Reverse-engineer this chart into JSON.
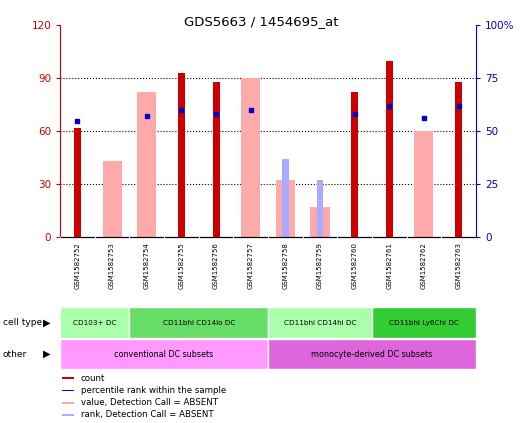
{
  "title": "GDS5663 / 1454695_at",
  "samples": [
    "GSM1582752",
    "GSM1582753",
    "GSM1582754",
    "GSM1582755",
    "GSM1582756",
    "GSM1582757",
    "GSM1582758",
    "GSM1582759",
    "GSM1582760",
    "GSM1582761",
    "GSM1582762",
    "GSM1582763"
  ],
  "count_values": [
    62,
    null,
    null,
    93,
    88,
    null,
    null,
    null,
    82,
    100,
    null,
    88
  ],
  "percentile_values": [
    55,
    null,
    57,
    60,
    58,
    60,
    null,
    null,
    58,
    62,
    56,
    62
  ],
  "absent_value_values": [
    null,
    43,
    82,
    null,
    null,
    90,
    32,
    17,
    null,
    null,
    60,
    null
  ],
  "absent_rank_values": [
    null,
    null,
    null,
    null,
    null,
    null,
    37,
    27,
    null,
    null,
    null,
    null
  ],
  "left_ylim": [
    0,
    120
  ],
  "right_ylim": [
    0,
    100
  ],
  "left_yticks": [
    0,
    30,
    60,
    90,
    120
  ],
  "right_yticks": [
    0,
    25,
    50,
    75,
    100
  ],
  "left_yticklabels": [
    "0",
    "30",
    "60",
    "90",
    "120"
  ],
  "right_yticklabels": [
    "0",
    "25",
    "50",
    "75",
    "100%"
  ],
  "left_tick_color": "#cc0000",
  "right_tick_color": "#0000cc",
  "count_color": "#cc0000",
  "percentile_color": "#0000cc",
  "absent_value_color": "#ffaaaa",
  "absent_rank_color": "#aaaaff",
  "cell_type_groups": [
    {
      "label": "CD103+ DC",
      "start": 0,
      "end": 1,
      "color": "#aaffaa"
    },
    {
      "label": "CD11bhi CD14lo DC",
      "start": 2,
      "end": 5,
      "color": "#66dd66"
    },
    {
      "label": "CD11bhi CD14hi DC",
      "start": 6,
      "end": 8,
      "color": "#aaffaa"
    },
    {
      "label": "CD11bhi Ly6Chi DC",
      "start": 9,
      "end": 11,
      "color": "#33cc33"
    }
  ],
  "other_groups": [
    {
      "label": "conventional DC subsets",
      "start": 0,
      "end": 5,
      "color": "#ff99ff"
    },
    {
      "label": "monocyte-derived DC subsets",
      "start": 6,
      "end": 11,
      "color": "#dd66dd"
    }
  ],
  "sample_area_color": "#c8c8c8",
  "grid_yticks": [
    30,
    60,
    90
  ]
}
